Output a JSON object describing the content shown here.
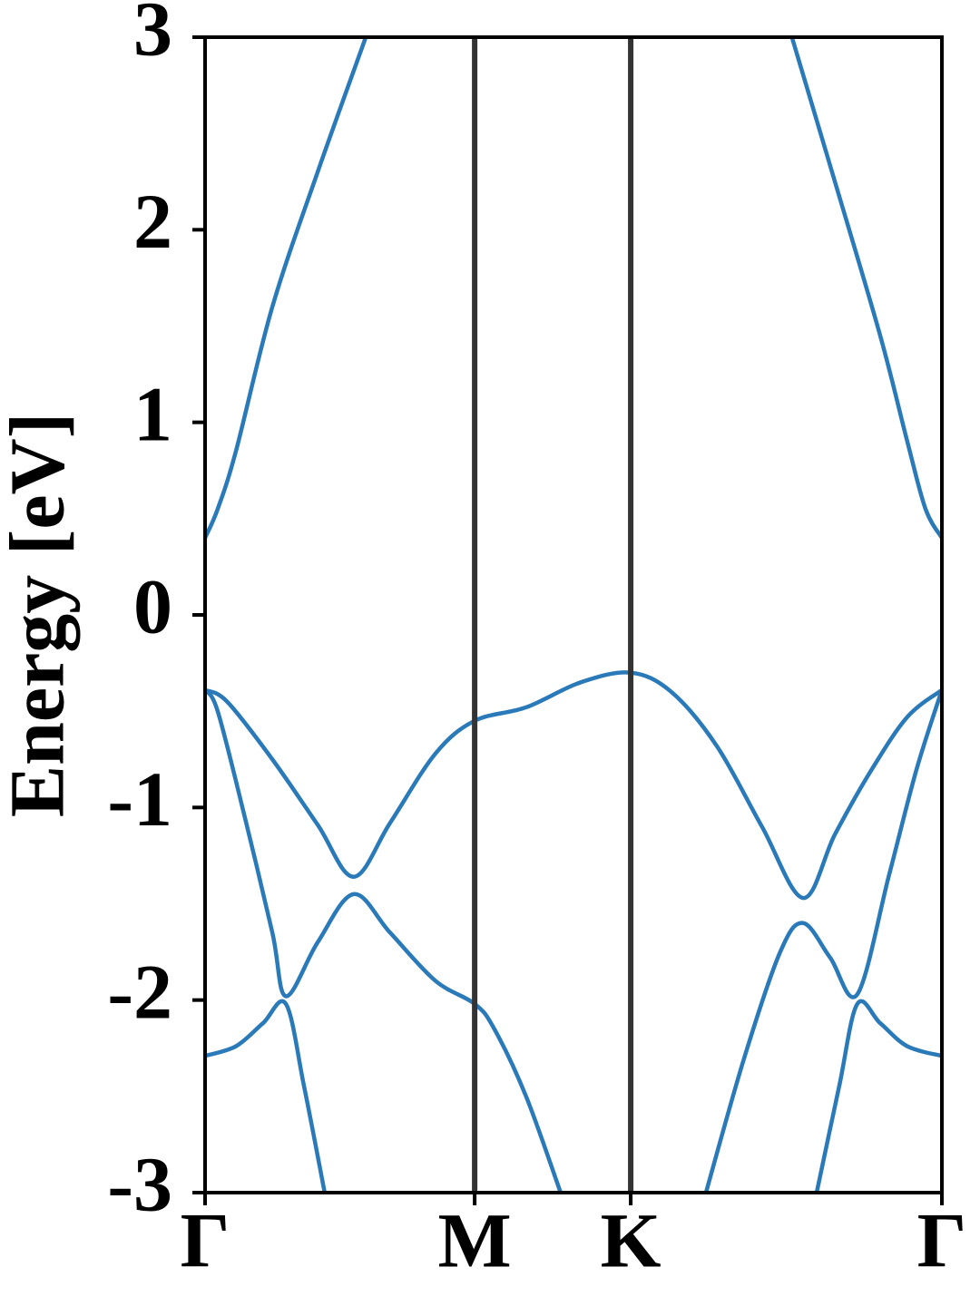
{
  "chart_data": {
    "type": "line",
    "ylabel": "Energy [eV]",
    "xlim": [
      0,
      1.577
    ],
    "ylim": [
      -3,
      3
    ],
    "yticks": [
      -3,
      -2,
      -1,
      0,
      1,
      2,
      3
    ],
    "xticks": [
      {
        "value": 0,
        "label": "Γ"
      },
      {
        "value": 0.577,
        "label": "M"
      },
      {
        "value": 0.911,
        "label": "K"
      },
      {
        "value": 1.577,
        "label": "Γ"
      }
    ],
    "vlines": [
      0.577,
      0.911
    ],
    "vline_color": "#333333",
    "series": [
      {
        "color": "#2a7ab9",
        "x": [
          0,
          0.047,
          0.144,
          0.241,
          0.318,
          0.396,
          0.493,
          0.577,
          0.687,
          0.804,
          0.911,
          0.998,
          1.095,
          1.192,
          1.28,
          1.348,
          1.425,
          1.503,
          1.577
        ],
        "values": [
          -0.39,
          -0.45,
          -0.75,
          -1.09,
          -1.36,
          -1.08,
          -0.72,
          -0.55,
          -0.48,
          -0.35,
          -0.3,
          -0.4,
          -0.68,
          -1.1,
          -1.47,
          -1.14,
          -0.81,
          -0.53,
          -0.39
        ]
      },
      {
        "color": "#2a7ab9",
        "x": [
          0,
          0.027,
          0.085,
          0.144,
          0.173,
          0.241,
          0.318,
          0.396,
          0.493,
          0.577,
          0.619,
          0.687,
          0.761,
          0.911,
          1.072,
          1.154,
          1.231,
          1.28,
          1.338,
          1.396,
          1.464,
          1.523,
          1.577
        ],
        "values": [
          -0.39,
          -0.5,
          -1.05,
          -1.65,
          -1.98,
          -1.7,
          -1.45,
          -1.65,
          -1.9,
          -2.02,
          -2.15,
          -2.5,
          -3,
          null,
          -3,
          -2.3,
          -1.75,
          -1.6,
          -1.78,
          -1.97,
          -1.35,
          -0.8,
          -0.39
        ]
      },
      {
        "color": "#2a7ab9",
        "x": [
          0,
          0.066,
          0.124,
          0.173,
          0.212,
          0.256,
          0.6,
          1.309,
          1.357,
          1.396,
          1.445,
          1.503,
          1.577
        ],
        "values": [
          -2.29,
          -2.24,
          -2.12,
          -2.02,
          -2.45,
          -3,
          null,
          -3,
          -2.45,
          -2.02,
          -2.12,
          -2.24,
          -2.29
        ]
      },
      {
        "color": "#2a7ab9",
        "x": [
          0,
          0.027,
          0.066,
          0.144,
          0.241,
          0.344,
          0.8,
          1.256,
          1.348,
          1.445,
          1.503,
          1.542,
          1.577
        ],
        "values": [
          0.4,
          0.55,
          0.85,
          1.6,
          2.3,
          3,
          null,
          3,
          2.25,
          1.45,
          0.9,
          0.55,
          0.4
        ]
      }
    ]
  }
}
